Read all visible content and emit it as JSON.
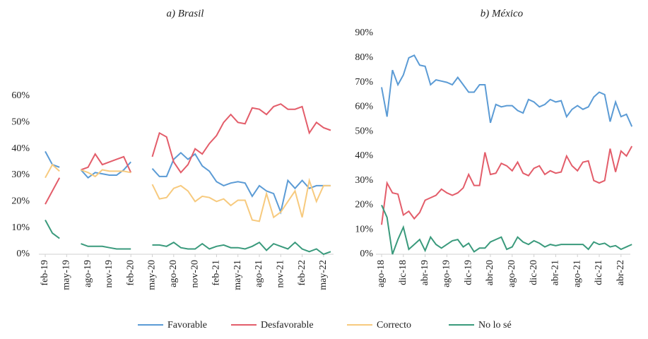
{
  "chart_data": [
    {
      "type": "line",
      "title": "a) Brasil",
      "categories": [
        "feb-19",
        null,
        null,
        "may-19",
        null,
        null,
        "ago-19",
        null,
        null,
        "nov-19",
        null,
        null,
        "feb-20",
        null,
        null,
        "may-20",
        null,
        null,
        "ago-20",
        null,
        null,
        "nov-20",
        null,
        null,
        "feb-21",
        null,
        null,
        "may-21",
        null,
        null,
        "ago-21",
        null,
        null,
        "nov-21",
        null,
        null,
        "feb-22",
        null,
        null,
        "may-22",
        null
      ],
      "ylim": [
        0,
        60
      ],
      "yticks": [
        {
          "value": 0,
          "label": "0%"
        },
        {
          "value": 10,
          "label": "10%"
        },
        {
          "value": 20,
          "label": "20%"
        },
        {
          "value": 30,
          "label": "30%"
        },
        {
          "value": 40,
          "label": "40%"
        },
        {
          "value": 50,
          "label": "50%"
        },
        {
          "value": 60,
          "label": "60%"
        }
      ],
      "series": [
        {
          "name": "Favorable",
          "color": "#5b9bd5",
          "values": [
            39,
            34,
            33,
            null,
            null,
            32,
            29,
            31,
            30.5,
            30,
            30,
            32,
            35,
            null,
            null,
            32.5,
            29.5,
            29.5,
            36,
            38.5,
            36,
            38,
            33.5,
            31.5,
            27.5,
            26,
            27,
            27.5,
            27,
            22,
            26,
            24,
            23,
            16,
            28,
            25,
            28,
            25,
            26,
            26,
            26
          ]
        },
        {
          "name": "Desfavorable",
          "color": "#e35d6a",
          "values": [
            19,
            24,
            29,
            null,
            null,
            32,
            33,
            38,
            34,
            35,
            36,
            37,
            31,
            null,
            null,
            37,
            46,
            44.5,
            35,
            31,
            34,
            40,
            38,
            42,
            45,
            50,
            53,
            50,
            49.5,
            55.5,
            55,
            53,
            56,
            57,
            55,
            55,
            56,
            46,
            50,
            48,
            47
          ]
        },
        {
          "name": "Correcto",
          "color": "#f7ca7e",
          "values": [
            29,
            34,
            31.5,
            null,
            null,
            32,
            31,
            29.5,
            32,
            31.5,
            31.5,
            31.5,
            31,
            null,
            null,
            26.5,
            21,
            21.5,
            25,
            26,
            24,
            20,
            22,
            21.5,
            20,
            21,
            18.5,
            20.5,
            20.5,
            13,
            12.5,
            23,
            14,
            16,
            20,
            24,
            14,
            28,
            20,
            26,
            26
          ]
        },
        {
          "name": "No lo sé",
          "color": "#3a9a7c",
          "values": [
            13,
            8,
            6,
            null,
            null,
            4,
            3,
            3,
            3,
            2.5,
            2,
            2,
            2,
            null,
            null,
            3.5,
            3.5,
            3,
            4.5,
            2.5,
            2,
            2,
            4,
            2,
            3,
            3.5,
            2.5,
            2.5,
            2,
            3,
            4.5,
            1.5,
            4,
            3,
            2,
            4.5,
            2,
            1,
            2,
            0,
            1
          ]
        }
      ]
    },
    {
      "type": "line",
      "title": "b) México",
      "categories": [
        "ago-18",
        null,
        null,
        null,
        "dic-18",
        null,
        null,
        null,
        "abr-19",
        null,
        null,
        null,
        "ago-19",
        null,
        null,
        null,
        "dic-19",
        null,
        null,
        null,
        "abr-20",
        null,
        null,
        null,
        "ago-20",
        null,
        null,
        null,
        "dic-20",
        null,
        null,
        null,
        "abr-21",
        null,
        null,
        null,
        "ago-21",
        null,
        null,
        null,
        "dic-21",
        null,
        null,
        null,
        "abr-22",
        null,
        null
      ],
      "ylim": [
        0,
        90
      ],
      "yticks": [
        {
          "value": 0,
          "label": "0%"
        },
        {
          "value": 10,
          "label": "10%"
        },
        {
          "value": 20,
          "label": "20%"
        },
        {
          "value": 30,
          "label": "30%"
        },
        {
          "value": 40,
          "label": "40%"
        },
        {
          "value": 50,
          "label": "50%"
        },
        {
          "value": 60,
          "label": "60%"
        },
        {
          "value": 70,
          "label": "70%"
        },
        {
          "value": 80,
          "label": "80%"
        },
        {
          "value": 90,
          "label": "90%"
        }
      ],
      "series": [
        {
          "color": "#5b9bd5",
          "values": [
            68,
            56,
            75,
            69,
            73,
            80,
            81,
            77,
            76.5,
            69,
            71,
            70.5,
            70,
            69,
            72,
            69,
            66,
            66,
            69,
            69,
            53.5,
            61,
            60,
            60.5,
            60.5,
            58.5,
            57.5,
            63,
            62,
            60,
            61,
            63,
            62,
            62.5,
            56,
            59,
            60.5,
            59,
            60,
            64,
            66,
            65,
            54,
            62,
            56,
            57,
            52
          ]
        },
        {
          "color": "#e35d6a",
          "values": [
            12,
            29,
            25,
            24.5,
            16,
            17.5,
            14.5,
            17,
            22,
            23,
            24,
            26.5,
            25,
            24,
            25,
            27,
            32.5,
            28,
            28,
            41.5,
            32.5,
            33,
            37,
            36,
            34,
            37.5,
            33,
            32,
            35,
            36,
            32.5,
            34,
            33,
            33.5,
            40,
            36,
            34,
            37.5,
            38,
            30,
            29,
            30,
            43,
            33.5,
            42,
            40,
            44
          ]
        },
        {
          "color": "#3a9a7c",
          "values": [
            20,
            15,
            0,
            6,
            11,
            2,
            4,
            6,
            1.5,
            7,
            4,
            2.5,
            4,
            5.5,
            6,
            3,
            4.5,
            1,
            2.5,
            2.5,
            5,
            6,
            7,
            2,
            3,
            7,
            5,
            4,
            5.5,
            4.5,
            3,
            4,
            3.5,
            4,
            4,
            4,
            4,
            4,
            2,
            5,
            4,
            4.5,
            3,
            3.5,
            2,
            3,
            4
          ]
        }
      ]
    }
  ]
}
